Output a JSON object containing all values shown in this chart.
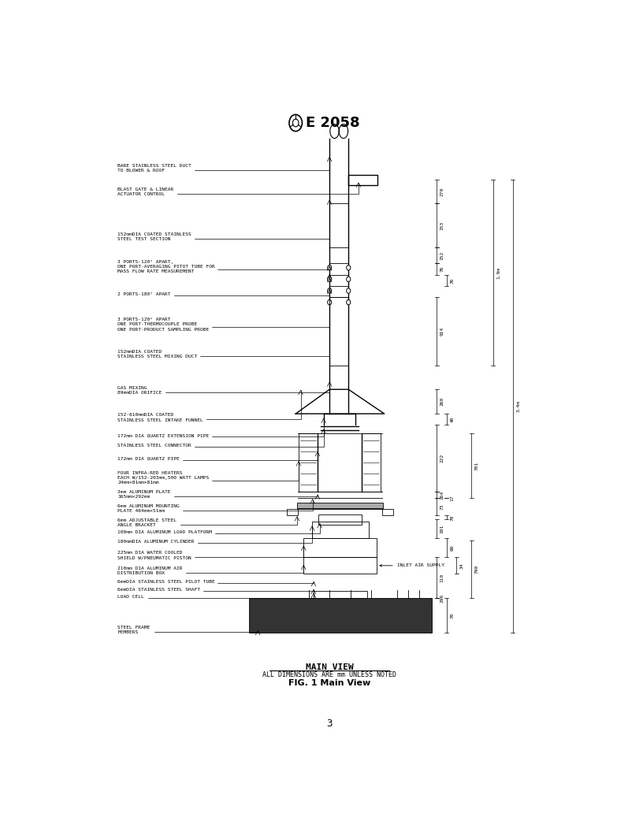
{
  "title": "E 2058",
  "page_number": "3",
  "caption_main": "MAIN VIEW",
  "caption_sub": "ALL DIMENSIONS ARE mm UNLESS NOTED",
  "caption_fig": "FIG. 1 Main View",
  "bg_color": "#ffffff",
  "line_color": "#000000"
}
